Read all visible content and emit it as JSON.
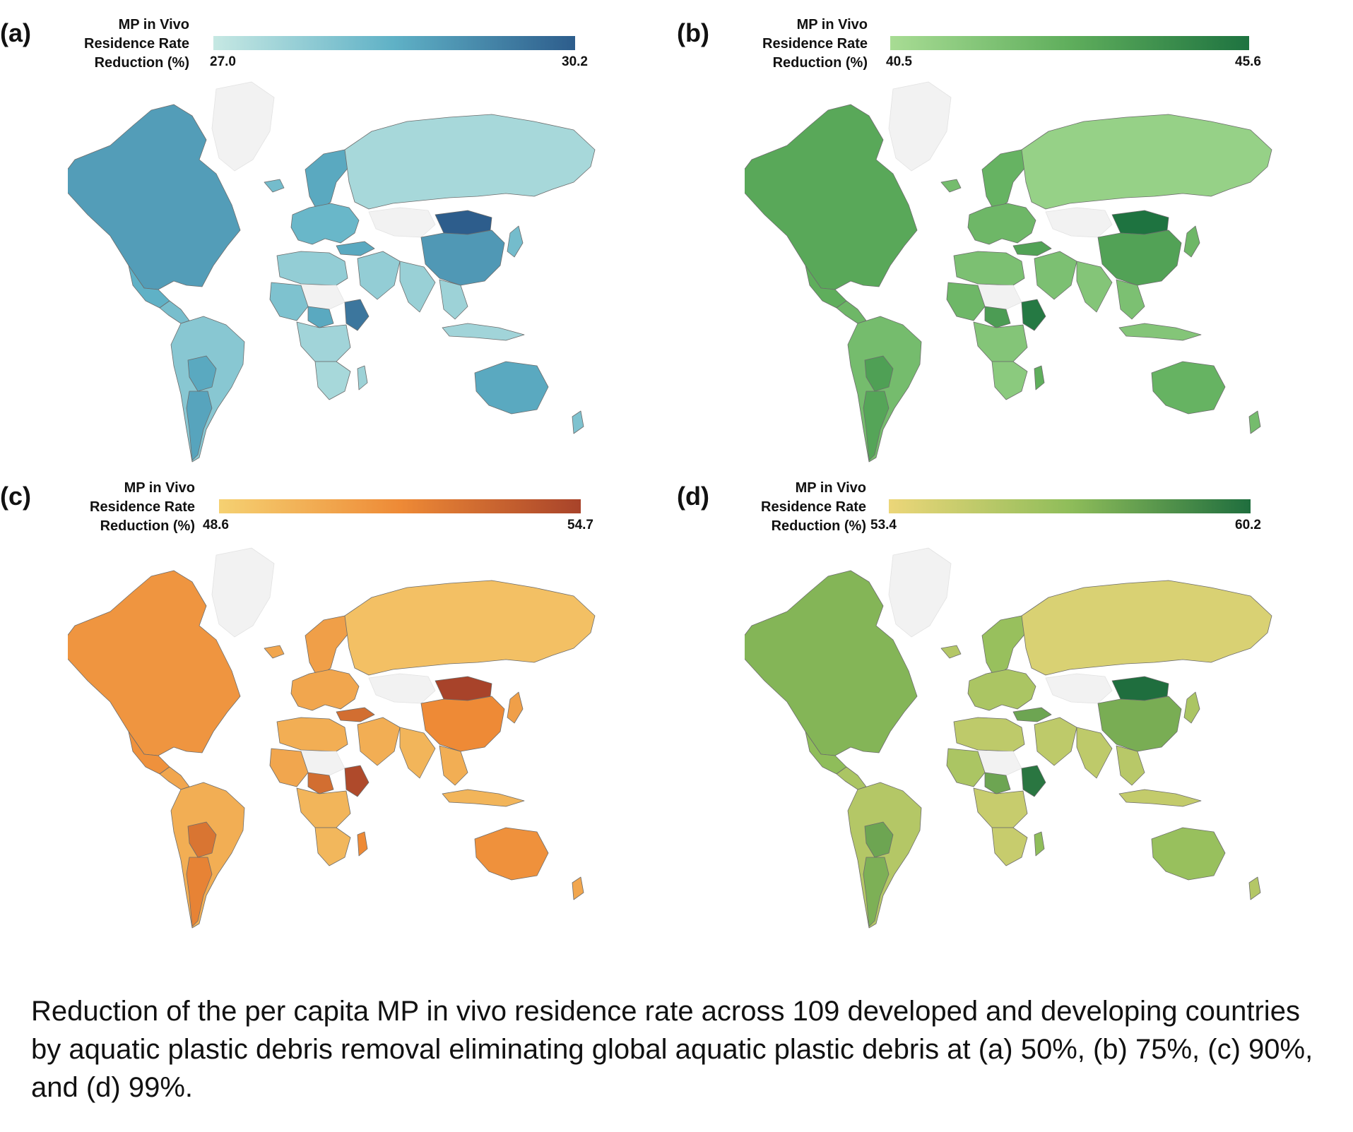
{
  "caption": "Reduction of the per capita MP in vivo residence rate across 109 developed and developing countries by aquatic plastic debris removal eliminating global aquatic plastic debris at (a) 50%, (b) 75%, (c) 90%, and (d) 99%.",
  "legend_title": [
    "MP in Vivo",
    "Residence Rate",
    "Reduction (%)"
  ],
  "panels": [
    {
      "label": "(a)",
      "min_label": "27.0",
      "max_label": "30.2",
      "colors": {
        "low": "#c6e8e3",
        "mid": "#5fb1c6",
        "high": "#2d5d8c",
        "none": "#f2f2f2"
      },
      "levels": {
        "north_america": 0.62,
        "greenland": -1,
        "mexico": 0.5,
        "central_america": 0.38,
        "south_america": 0.3,
        "bolivia_paraguay": 0.55,
        "argentina": 0.58,
        "europe": 0.45,
        "iceland": 0.4,
        "scandinavia": 0.55,
        "russia": 0.15,
        "kazakhstan": -1,
        "mongolia": 1.0,
        "china": 0.65,
        "india": 0.22,
        "middle_east": 0.25,
        "turkey": 0.55,
        "north_africa": 0.25,
        "sahara": -1,
        "west_africa": 0.35,
        "chad": 0.55,
        "east_africa": 0.85,
        "central_africa": 0.18,
        "southern_africa": 0.15,
        "madagascar": 0.2,
        "southeast_asia": 0.2,
        "japan": 0.4,
        "indonesia": 0.18,
        "australia": 0.55,
        "new_zealand": 0.35
      }
    },
    {
      "label": "(b)",
      "min_label": "40.5",
      "max_label": "45.6",
      "colors": {
        "low": "#a8dc94",
        "mid": "#5fae5c",
        "high": "#1e7340",
        "none": "#f2f2f2"
      },
      "levels": {
        "north_america": 0.55,
        "greenland": -1,
        "mexico": 0.5,
        "central_america": 0.4,
        "south_america": 0.35,
        "bolivia_paraguay": 0.62,
        "argentina": 0.58,
        "europe": 0.4,
        "iceland": 0.35,
        "scandinavia": 0.45,
        "russia": 0.12,
        "kazakhstan": -1,
        "mongolia": 1.0,
        "china": 0.6,
        "india": 0.25,
        "middle_east": 0.3,
        "turkey": 0.6,
        "north_africa": 0.3,
        "sahara": -1,
        "west_africa": 0.4,
        "chad": 0.65,
        "east_africa": 0.95,
        "central_africa": 0.25,
        "southern_africa": 0.2,
        "madagascar": 0.5,
        "southeast_asia": 0.3,
        "japan": 0.4,
        "indonesia": 0.25,
        "australia": 0.45,
        "new_zealand": 0.35
      }
    },
    {
      "label": "(c)",
      "min_label": "48.6",
      "max_label": "54.7",
      "colors": {
        "low": "#f5d172",
        "mid": "#ee8a36",
        "high": "#a8432a",
        "none": "#f2f2f2"
      },
      "levels": {
        "north_america": 0.42,
        "greenland": -1,
        "mexico": 0.45,
        "central_america": 0.3,
        "south_america": 0.25,
        "bolivia_paraguay": 0.65,
        "argentina": 0.55,
        "europe": 0.3,
        "iceland": 0.3,
        "scandinavia": 0.35,
        "russia": 0.12,
        "kazakhstan": -1,
        "mongolia": 1.0,
        "china": 0.5,
        "india": 0.2,
        "middle_east": 0.25,
        "turkey": 0.7,
        "north_africa": 0.25,
        "sahara": -1,
        "west_africa": 0.3,
        "chad": 0.7,
        "east_africa": 0.95,
        "central_africa": 0.2,
        "southern_africa": 0.18,
        "madagascar": 0.5,
        "southeast_asia": 0.25,
        "japan": 0.35,
        "indonesia": 0.2,
        "australia": 0.45,
        "new_zealand": 0.3
      }
    },
    {
      "label": "(d)",
      "min_label": "53.4",
      "max_label": "60.2",
      "colors": {
        "low": "#ecd679",
        "mid": "#8fbd5a",
        "high": "#1f6e3e",
        "none": "#f2f2f2"
      },
      "levels": {
        "north_america": 0.55,
        "greenland": -1,
        "mexico": 0.5,
        "central_america": 0.35,
        "south_america": 0.3,
        "bolivia_paraguay": 0.65,
        "argentina": 0.58,
        "europe": 0.35,
        "iceland": 0.3,
        "scandinavia": 0.45,
        "russia": 0.1,
        "kazakhstan": -1,
        "mongolia": 1.0,
        "china": 0.6,
        "india": 0.25,
        "middle_east": 0.25,
        "turkey": 0.65,
        "north_africa": 0.25,
        "sahara": -1,
        "west_africa": 0.35,
        "chad": 0.65,
        "east_africa": 0.95,
        "central_africa": 0.2,
        "southern_africa": 0.2,
        "madagascar": 0.5,
        "southeast_asia": 0.28,
        "japan": 0.35,
        "indonesia": 0.22,
        "australia": 0.45,
        "new_zealand": 0.3
      }
    }
  ]
}
